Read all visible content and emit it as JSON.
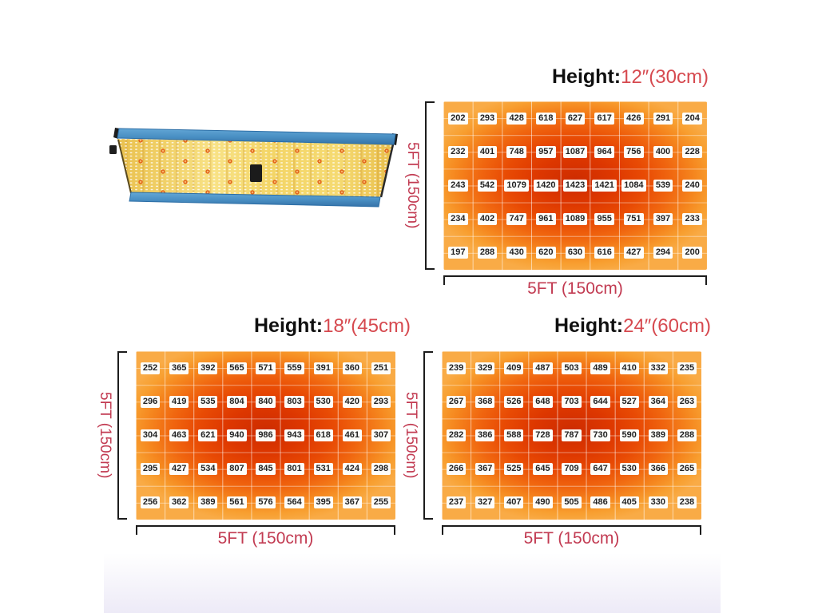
{
  "title": "LED grow light PPFD coverage maps",
  "colors": {
    "header_text": "#101010",
    "accent_red": "#d6494f",
    "dimension_red": "#c23b52",
    "heat_center_red": "#cd2c00",
    "heat_edge_orange": "#f9ab46",
    "panel_frame_blue": "#4a90c4",
    "panel_board_yellow": "#f3d567"
  },
  "panel": {
    "description": "led-grow-light-panel"
  },
  "sections": [
    {
      "height_label": "Height:",
      "height_value": "12″(30cm)",
      "x_axis_label": "5FT (150cm)",
      "y_axis_label": "5FT (150cm)"
    },
    {
      "height_label": "Height:",
      "height_value": "18″(45cm)",
      "x_axis_label": "5FT (150cm)",
      "y_axis_label": "5FT (150cm)"
    },
    {
      "height_label": "Height:",
      "height_value": "24″(60cm)",
      "x_axis_label": "5FT (150cm)",
      "y_axis_label": "5FT (150cm)"
    }
  ],
  "chart_data": [
    {
      "type": "heatmap",
      "title": "Height: 12″(30cm)",
      "xlabel": "5FT (150cm)",
      "ylabel": "5FT (150cm)",
      "rows": 5,
      "cols": 9,
      "values": [
        [
          202,
          293,
          428,
          618,
          627,
          617,
          426,
          291,
          204
        ],
        [
          232,
          401,
          748,
          957,
          1087,
          964,
          756,
          400,
          228
        ],
        [
          243,
          542,
          1079,
          1420,
          1423,
          1421,
          1084,
          539,
          240
        ],
        [
          234,
          402,
          747,
          961,
          1089,
          955,
          751,
          397,
          233
        ],
        [
          197,
          288,
          430,
          620,
          630,
          616,
          427,
          294,
          200
        ]
      ]
    },
    {
      "type": "heatmap",
      "title": "Height: 18″(45cm)",
      "xlabel": "5FT (150cm)",
      "ylabel": "5FT (150cm)",
      "rows": 5,
      "cols": 9,
      "values": [
        [
          252,
          365,
          392,
          565,
          571,
          559,
          391,
          360,
          251
        ],
        [
          296,
          419,
          535,
          804,
          840,
          803,
          530,
          420,
          293
        ],
        [
          304,
          463,
          621,
          940,
          986,
          943,
          618,
          461,
          307
        ],
        [
          295,
          427,
          534,
          807,
          845,
          801,
          531,
          424,
          298
        ],
        [
          256,
          362,
          389,
          561,
          576,
          564,
          395,
          367,
          255
        ]
      ]
    },
    {
      "type": "heatmap",
      "title": "Height: 24″(60cm)",
      "xlabel": "5FT (150cm)",
      "ylabel": "5FT (150cm)",
      "rows": 5,
      "cols": 9,
      "values": [
        [
          239,
          329,
          409,
          487,
          503,
          489,
          410,
          332,
          235
        ],
        [
          267,
          368,
          526,
          648,
          703,
          644,
          527,
          364,
          263
        ],
        [
          282,
          386,
          588,
          728,
          787,
          730,
          590,
          389,
          288
        ],
        [
          266,
          367,
          525,
          645,
          709,
          647,
          530,
          366,
          265
        ],
        [
          237,
          327,
          407,
          490,
          505,
          486,
          405,
          330,
          238
        ]
      ]
    }
  ]
}
